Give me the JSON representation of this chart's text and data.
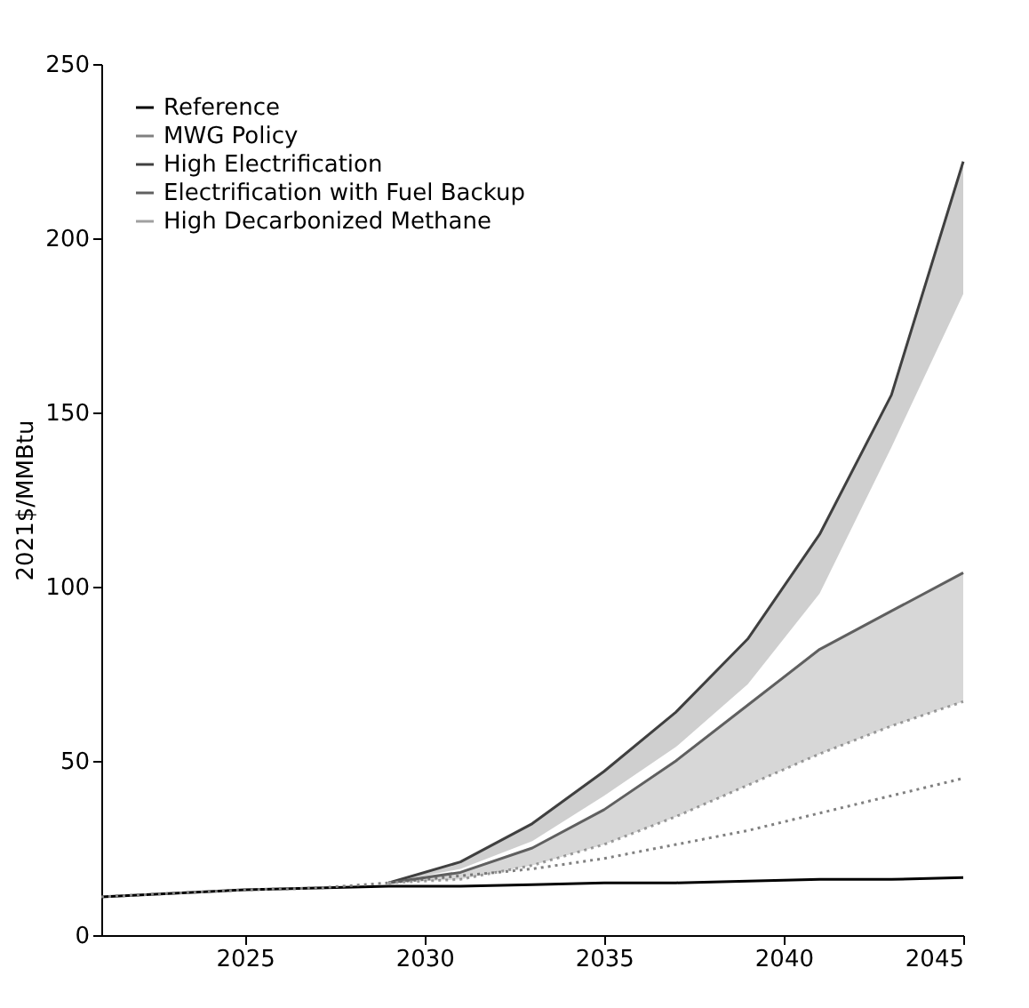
{
  "chart_data": {
    "type": "line",
    "ylabel": "2021$/MMBtu",
    "x": [
      2021,
      2023,
      2025,
      2027,
      2029,
      2031,
      2033,
      2035,
      2037,
      2039,
      2041,
      2043,
      2045
    ],
    "xlim": [
      2021,
      2045
    ],
    "xticks": [
      2025,
      2030,
      2035,
      2040,
      2045
    ],
    "ylim": [
      0,
      250
    ],
    "yticks": [
      0,
      50,
      100,
      150,
      200,
      250
    ],
    "grid": false,
    "legend": "top left",
    "marker": "none",
    "series": [
      {
        "name": "Reference",
        "color": "#000000",
        "line_style": "solid",
        "values": [
          11,
          12,
          13,
          13.5,
          14,
          14,
          14.5,
          15,
          15,
          15.5,
          16,
          16,
          16.5
        ]
      },
      {
        "name": "MWG Policy",
        "color": "#808080",
        "line_style": "dotted",
        "values": [
          11,
          12,
          13,
          13.5,
          15,
          17,
          19,
          22,
          26,
          30,
          35,
          40,
          45
        ]
      },
      {
        "name": "High Electrification",
        "color": "#404040",
        "values": [
          null,
          null,
          null,
          null,
          15,
          21,
          32,
          47,
          64,
          85,
          115,
          155,
          222
        ],
        "lower": [
          null,
          null,
          null,
          null,
          15,
          19,
          27,
          40,
          54,
          72,
          98,
          140,
          184
        ],
        "upper": [
          null,
          null,
          null,
          null,
          15,
          21,
          32,
          47,
          64,
          85,
          115,
          155,
          222
        ]
      },
      {
        "name": "Electrification with Fuel Backup",
        "color": "#606060",
        "values": [
          null,
          null,
          null,
          null,
          15,
          18,
          25,
          36,
          50,
          66,
          82,
          93,
          104
        ],
        "lower": [
          null,
          null,
          null,
          null,
          15,
          16,
          20,
          26,
          34,
          43,
          52,
          60,
          67
        ],
        "upper": [
          null,
          null,
          null,
          null,
          15,
          18,
          25,
          36,
          50,
          66,
          82,
          93,
          104
        ]
      },
      {
        "name": "High Decarbonized Methane",
        "color": "#a0a0a0",
        "line_style": "dotted",
        "values": [
          null,
          null,
          null,
          null,
          15,
          16,
          20,
          26,
          34,
          43,
          52,
          60,
          67
        ]
      }
    ]
  }
}
